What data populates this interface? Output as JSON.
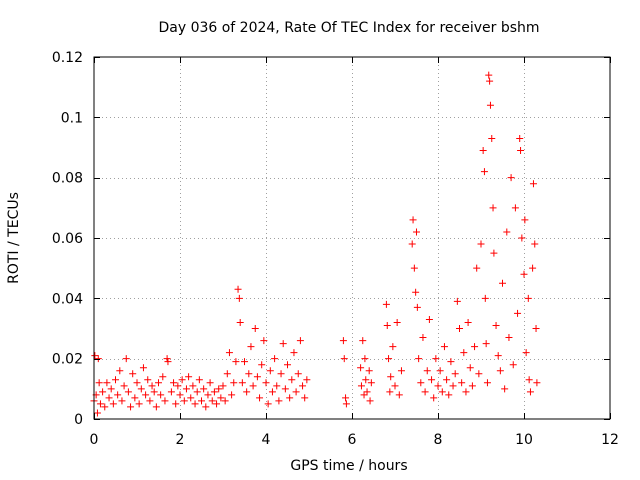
{
  "chart_data": {
    "type": "scatter",
    "title": "Day 036 of 2024, Rate Of TEC Index for receiver bshm",
    "xlabel": "GPS time / hours",
    "ylabel": "ROTI / TECUs",
    "xlim": [
      0,
      12
    ],
    "ylim": [
      0,
      0.12
    ],
    "xticks": [
      0,
      2,
      4,
      6,
      8,
      10,
      12
    ],
    "xtick_labels": [
      "0",
      "2",
      "4",
      "6",
      "8",
      "10",
      "12"
    ],
    "yticks": [
      0,
      0.02,
      0.04,
      0.06,
      0.08,
      0.1,
      0.12
    ],
    "ytick_labels": [
      "0",
      "0.02",
      "0.04",
      "0.06",
      "0.08",
      "0.1",
      "0.12"
    ],
    "grid": true,
    "marker": "+",
    "color": "#ff0000",
    "series": [
      {
        "name": "ROTI",
        "points": [
          [
            0.0,
            0.006
          ],
          [
            0.02,
            0.021
          ],
          [
            0.05,
            0.008
          ],
          [
            0.08,
            0.002
          ],
          [
            0.1,
            0.02
          ],
          [
            0.12,
            0.012
          ],
          [
            0.15,
            0.005
          ],
          [
            0.2,
            0.009
          ],
          [
            0.25,
            0.004
          ],
          [
            0.3,
            0.012
          ],
          [
            0.35,
            0.007
          ],
          [
            0.4,
            0.01
          ],
          [
            0.45,
            0.005
          ],
          [
            0.5,
            0.013
          ],
          [
            0.55,
            0.008
          ],
          [
            0.6,
            0.016
          ],
          [
            0.65,
            0.006
          ],
          [
            0.7,
            0.011
          ],
          [
            0.75,
            0.02
          ],
          [
            0.8,
            0.009
          ],
          [
            0.85,
            0.004
          ],
          [
            0.9,
            0.015
          ],
          [
            0.95,
            0.007
          ],
          [
            1.0,
            0.012
          ],
          [
            1.05,
            0.005
          ],
          [
            1.1,
            0.01
          ],
          [
            1.15,
            0.017
          ],
          [
            1.2,
            0.008
          ],
          [
            1.25,
            0.013
          ],
          [
            1.3,
            0.006
          ],
          [
            1.35,
            0.011
          ],
          [
            1.4,
            0.009
          ],
          [
            1.45,
            0.004
          ],
          [
            1.5,
            0.012
          ],
          [
            1.55,
            0.008
          ],
          [
            1.6,
            0.014
          ],
          [
            1.65,
            0.006
          ],
          [
            1.7,
            0.02
          ],
          [
            1.72,
            0.019
          ],
          [
            1.8,
            0.009
          ],
          [
            1.85,
            0.012
          ],
          [
            1.9,
            0.005
          ],
          [
            1.95,
            0.011
          ],
          [
            2.0,
            0.008
          ],
          [
            2.05,
            0.013
          ],
          [
            2.1,
            0.006
          ],
          [
            2.15,
            0.01
          ],
          [
            2.2,
            0.014
          ],
          [
            2.25,
            0.007
          ],
          [
            2.3,
            0.011
          ],
          [
            2.35,
            0.005
          ],
          [
            2.4,
            0.009
          ],
          [
            2.45,
            0.013
          ],
          [
            2.5,
            0.006
          ],
          [
            2.55,
            0.01
          ],
          [
            2.6,
            0.004
          ],
          [
            2.65,
            0.008
          ],
          [
            2.7,
            0.012
          ],
          [
            2.75,
            0.006
          ],
          [
            2.8,
            0.009
          ],
          [
            2.85,
            0.005
          ],
          [
            2.9,
            0.01
          ],
          [
            2.95,
            0.007
          ],
          [
            3.0,
            0.011
          ],
          [
            3.05,
            0.006
          ],
          [
            3.1,
            0.015
          ],
          [
            3.15,
            0.022
          ],
          [
            3.2,
            0.008
          ],
          [
            3.25,
            0.012
          ],
          [
            3.3,
            0.019
          ],
          [
            3.35,
            0.043
          ],
          [
            3.38,
            0.04
          ],
          [
            3.4,
            0.032
          ],
          [
            3.45,
            0.012
          ],
          [
            3.5,
            0.019
          ],
          [
            3.55,
            0.009
          ],
          [
            3.6,
            0.015
          ],
          [
            3.65,
            0.024
          ],
          [
            3.7,
            0.011
          ],
          [
            3.75,
            0.03
          ],
          [
            3.8,
            0.014
          ],
          [
            3.85,
            0.007
          ],
          [
            3.9,
            0.018
          ],
          [
            3.95,
            0.026
          ],
          [
            4.0,
            0.012
          ],
          [
            4.05,
            0.005
          ],
          [
            4.1,
            0.016
          ],
          [
            4.15,
            0.009
          ],
          [
            4.2,
            0.02
          ],
          [
            4.25,
            0.011
          ],
          [
            4.3,
            0.006
          ],
          [
            4.35,
            0.015
          ],
          [
            4.4,
            0.025
          ],
          [
            4.45,
            0.01
          ],
          [
            4.5,
            0.018
          ],
          [
            4.55,
            0.007
          ],
          [
            4.6,
            0.013
          ],
          [
            4.65,
            0.022
          ],
          [
            4.7,
            0.009
          ],
          [
            4.75,
            0.015
          ],
          [
            4.8,
            0.026
          ],
          [
            4.85,
            0.011
          ],
          [
            4.9,
            0.007
          ],
          [
            4.95,
            0.013
          ],
          [
            5.8,
            0.026
          ],
          [
            5.82,
            0.02
          ],
          [
            5.85,
            0.007
          ],
          [
            5.87,
            0.005
          ],
          [
            6.2,
            0.017
          ],
          [
            6.22,
            0.011
          ],
          [
            6.25,
            0.026
          ],
          [
            6.28,
            0.008
          ],
          [
            6.3,
            0.02
          ],
          [
            6.32,
            0.013
          ],
          [
            6.35,
            0.009
          ],
          [
            6.4,
            0.016
          ],
          [
            6.42,
            0.006
          ],
          [
            6.45,
            0.012
          ],
          [
            6.8,
            0.038
          ],
          [
            6.82,
            0.031
          ],
          [
            6.85,
            0.02
          ],
          [
            6.88,
            0.009
          ],
          [
            6.9,
            0.014
          ],
          [
            6.95,
            0.024
          ],
          [
            7.0,
            0.011
          ],
          [
            7.05,
            0.032
          ],
          [
            7.1,
            0.008
          ],
          [
            7.15,
            0.016
          ],
          [
            7.4,
            0.058
          ],
          [
            7.42,
            0.066
          ],
          [
            7.45,
            0.05
          ],
          [
            7.48,
            0.042
          ],
          [
            7.5,
            0.062
          ],
          [
            7.52,
            0.037
          ],
          [
            7.55,
            0.02
          ],
          [
            7.6,
            0.012
          ],
          [
            7.65,
            0.027
          ],
          [
            7.7,
            0.009
          ],
          [
            7.75,
            0.016
          ],
          [
            7.8,
            0.033
          ],
          [
            7.85,
            0.013
          ],
          [
            7.9,
            0.007
          ],
          [
            7.95,
            0.02
          ],
          [
            8.0,
            0.011
          ],
          [
            8.05,
            0.016
          ],
          [
            8.1,
            0.009
          ],
          [
            8.15,
            0.024
          ],
          [
            8.2,
            0.013
          ],
          [
            8.25,
            0.008
          ],
          [
            8.3,
            0.019
          ],
          [
            8.35,
            0.011
          ],
          [
            8.4,
            0.015
          ],
          [
            8.45,
            0.039
          ],
          [
            8.5,
            0.03
          ],
          [
            8.55,
            0.012
          ],
          [
            8.6,
            0.022
          ],
          [
            8.65,
            0.009
          ],
          [
            8.7,
            0.032
          ],
          [
            8.75,
            0.017
          ],
          [
            8.8,
            0.011
          ],
          [
            8.85,
            0.024
          ],
          [
            8.9,
            0.05
          ],
          [
            8.95,
            0.015
          ],
          [
            9.0,
            0.058
          ],
          [
            9.05,
            0.089
          ],
          [
            9.08,
            0.082
          ],
          [
            9.1,
            0.04
          ],
          [
            9.12,
            0.025
          ],
          [
            9.15,
            0.012
          ],
          [
            9.18,
            0.114
          ],
          [
            9.2,
            0.112
          ],
          [
            9.22,
            0.104
          ],
          [
            9.25,
            0.093
          ],
          [
            9.28,
            0.07
          ],
          [
            9.3,
            0.055
          ],
          [
            9.35,
            0.031
          ],
          [
            9.4,
            0.021
          ],
          [
            9.45,
            0.016
          ],
          [
            9.5,
            0.045
          ],
          [
            9.55,
            0.01
          ],
          [
            9.6,
            0.062
          ],
          [
            9.65,
            0.027
          ],
          [
            9.7,
            0.08
          ],
          [
            9.75,
            0.018
          ],
          [
            9.8,
            0.07
          ],
          [
            9.85,
            0.035
          ],
          [
            9.9,
            0.093
          ],
          [
            9.92,
            0.089
          ],
          [
            9.95,
            0.06
          ],
          [
            10.0,
            0.048
          ],
          [
            10.02,
            0.066
          ],
          [
            10.05,
            0.022
          ],
          [
            10.1,
            0.04
          ],
          [
            10.12,
            0.013
          ],
          [
            10.15,
            0.009
          ],
          [
            10.2,
            0.05
          ],
          [
            10.22,
            0.078
          ],
          [
            10.25,
            0.058
          ],
          [
            10.28,
            0.03
          ],
          [
            10.3,
            0.012
          ]
        ]
      }
    ]
  }
}
